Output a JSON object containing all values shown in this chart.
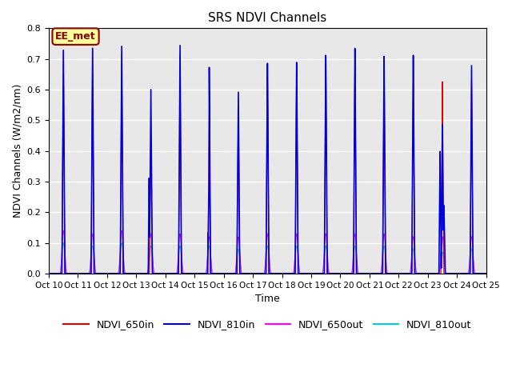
{
  "title": "SRS NDVI Channels",
  "ylabel": "NDVI Channels (W/m2/nm)",
  "xlabel": "Time",
  "ylim": [
    0.0,
    0.8
  ],
  "background_color": "#e8e8e8",
  "annotation_text": "EE_met",
  "annotation_bg": "#ffff99",
  "annotation_border": "#8b0000",
  "x_tick_labels": [
    "Oct 10",
    "Oct 11",
    "Oct 12",
    "Oct 13",
    "Oct 14",
    "Oct 15",
    "Oct 16",
    "Oct 17",
    "Oct 18",
    "Oct 19",
    "Oct 20",
    "Oct 21",
    "Oct 22",
    "Oct 23",
    "Oct 24",
    "Oct 25"
  ],
  "colors": {
    "NDVI_650in": "#dd0000",
    "NDVI_810in": "#0000dd",
    "NDVI_650out": "#ff00ff",
    "NDVI_810out": "#00cccc"
  },
  "peaks_810in": [
    0.73,
    0.74,
    0.75,
    0.61,
    0.76,
    0.69,
    0.61,
    0.71,
    0.71,
    0.73,
    0.75,
    0.72,
    0.72,
    0.49,
    0.68
  ],
  "peaks_650in": [
    0.73,
    0.74,
    0.73,
    0.43,
    0.73,
    0.54,
    0.57,
    0.71,
    0.71,
    0.72,
    0.73,
    0.71,
    0.67,
    0.63,
    0.63
  ],
  "peaks_650out": [
    0.14,
    0.13,
    0.14,
    0.13,
    0.13,
    0.12,
    0.12,
    0.13,
    0.13,
    0.13,
    0.13,
    0.13,
    0.12,
    0.12,
    0.12
  ],
  "peaks_810out": [
    0.1,
    0.09,
    0.1,
    0.09,
    0.09,
    0.09,
    0.08,
    0.09,
    0.09,
    0.09,
    0.09,
    0.09,
    0.08,
    0.07,
    0.08
  ],
  "n_days": 15,
  "points_per_day": 288
}
